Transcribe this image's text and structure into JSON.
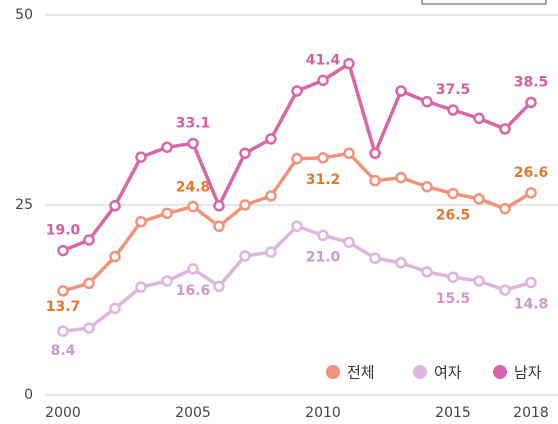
{
  "chart_data": {
    "type": "line",
    "x": [
      2000,
      2001,
      2002,
      2003,
      2004,
      2005,
      2006,
      2007,
      2008,
      2009,
      2010,
      2011,
      2012,
      2013,
      2014,
      2015,
      2016,
      2017,
      2018
    ],
    "xlim": [
      2000,
      2018
    ],
    "xticks": [
      2000,
      2005,
      2010,
      2015,
      2018
    ],
    "ylim": [
      0,
      50
    ],
    "yticks": [
      0,
      25,
      50
    ],
    "grid": true,
    "legend": "bottom-right",
    "series": [
      {
        "name": "전체",
        "color": "#f0937a",
        "label_color": "#e0782f",
        "values": [
          13.7,
          14.7,
          18.2,
          22.8,
          23.9,
          24.8,
          22.2,
          25.0,
          26.2,
          31.1,
          31.2,
          31.8,
          28.2,
          28.6,
          27.4,
          26.5,
          25.8,
          24.5,
          26.6
        ],
        "value_labels": [
          "13.7",
          null,
          null,
          null,
          null,
          "24.8",
          null,
          null,
          null,
          null,
          "31.2",
          null,
          null,
          null,
          null,
          "26.5",
          null,
          null,
          "26.6"
        ]
      },
      {
        "name": "여자",
        "color": "#dcb6dc",
        "label_color": "#c99ac9",
        "values": [
          8.4,
          8.8,
          11.4,
          14.2,
          15.0,
          16.6,
          14.3,
          18.3,
          18.8,
          22.2,
          21.0,
          20.1,
          18.0,
          17.4,
          16.2,
          15.5,
          15.0,
          13.8,
          14.8
        ],
        "value_labels": [
          "8.4",
          null,
          null,
          null,
          null,
          "16.6",
          null,
          null,
          null,
          null,
          "21.0",
          null,
          null,
          null,
          null,
          "15.5",
          null,
          null,
          "14.8"
        ]
      },
      {
        "name": "남자",
        "color": "#d966a6",
        "label_color": "#d65fa1",
        "values": [
          19.0,
          20.4,
          24.9,
          31.3,
          32.6,
          33.1,
          24.9,
          31.8,
          33.7,
          40.0,
          41.4,
          43.6,
          31.8,
          40.0,
          38.6,
          37.5,
          36.4,
          35.0,
          38.5
        ],
        "value_labels": [
          "19.0",
          null,
          null,
          null,
          null,
          "33.1",
          null,
          null,
          null,
          null,
          "41.4",
          null,
          null,
          null,
          null,
          "37.5",
          null,
          null,
          "38.5"
        ]
      }
    ]
  }
}
